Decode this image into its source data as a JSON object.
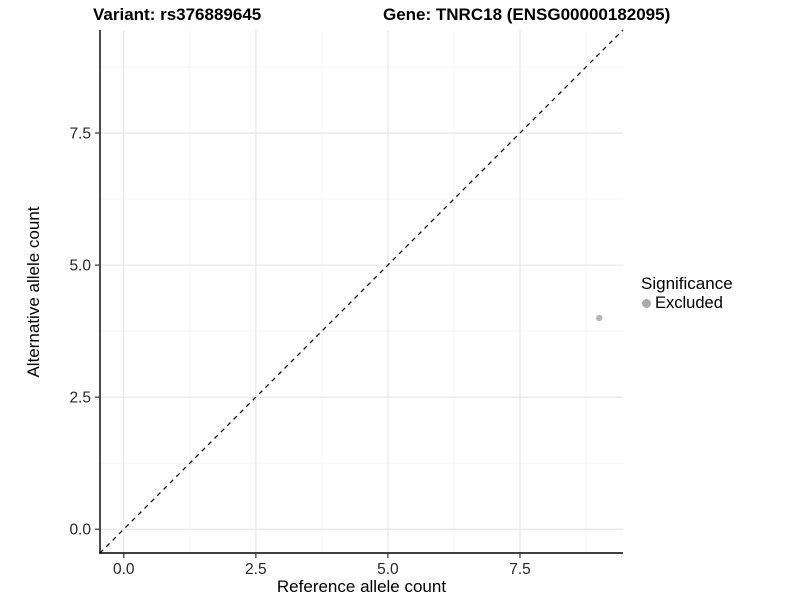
{
  "chart_data": {
    "type": "scatter",
    "title_left": "Variant: rs376889645",
    "title_right": "Gene: TNRC18 (ENSG00000182095)",
    "xlabel": "Reference allele count",
    "ylabel": "Alternative allele count",
    "xlim": [
      -0.45,
      9.45
    ],
    "ylim": [
      -0.45,
      9.45
    ],
    "x_ticks": [
      {
        "value": 0,
        "label": "0.0"
      },
      {
        "value": 2.5,
        "label": "2.5"
      },
      {
        "value": 5,
        "label": "5.0"
      },
      {
        "value": 7.5,
        "label": "7.5"
      }
    ],
    "y_ticks": [
      {
        "value": 0,
        "label": "0.0"
      },
      {
        "value": 2.5,
        "label": "2.5"
      },
      {
        "value": 5,
        "label": "5.0"
      },
      {
        "value": 7.5,
        "label": "7.5"
      }
    ],
    "minor_breaks": [
      1.25,
      3.75,
      6.25,
      8.75
    ],
    "grid": {
      "major_color": "#e8e8e8",
      "minor_color": "#f4f4f4"
    },
    "axis_color": "#000000",
    "tick_label_color": "#262626",
    "reference_line": {
      "kind": "identity y=x",
      "style": "dashed",
      "color": "#000000"
    },
    "series": [
      {
        "name": "Excluded",
        "color": "#b5b5b5",
        "points": [
          {
            "x": 9,
            "y": 4
          }
        ]
      }
    ],
    "legend": {
      "title": "Significance",
      "position": "right",
      "entries": [
        {
          "label": "Excluded",
          "color": "#aaaaaa"
        }
      ]
    }
  }
}
